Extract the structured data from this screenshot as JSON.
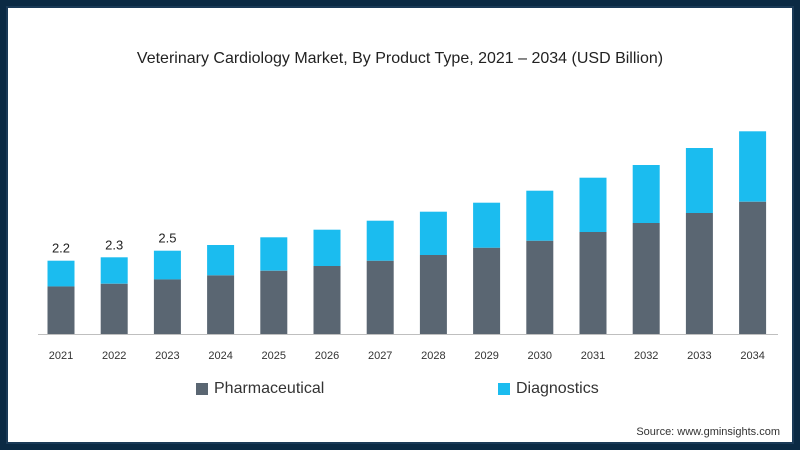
{
  "chart_data": {
    "type": "bar",
    "stacked": true,
    "title": "Veterinary Cardiology Market, By Product Type, 2021 – 2034 (USD Billion)",
    "categories": [
      "2021",
      "2022",
      "2023",
      "2024",
      "2025",
      "2026",
      "2027",
      "2028",
      "2029",
      "2030",
      "2031",
      "2032",
      "2033",
      "2034"
    ],
    "series": [
      {
        "name": "Pharmaceutical",
        "color": "#5a6672",
        "values": [
          1.43,
          1.51,
          1.64,
          1.76,
          1.9,
          2.04,
          2.2,
          2.37,
          2.59,
          2.8,
          3.06,
          3.33,
          3.63,
          3.97
        ]
      },
      {
        "name": "Diagnostics",
        "color": "#1bbcef",
        "values": [
          0.77,
          0.79,
          0.86,
          0.91,
          1.0,
          1.09,
          1.2,
          1.3,
          1.35,
          1.5,
          1.63,
          1.74,
          1.95,
          2.11
        ]
      }
    ],
    "data_labels": [
      "2.2",
      "2.3",
      "2.5"
    ],
    "ylim": [
      0,
      6.6
    ],
    "xlabel": "",
    "ylabel": "",
    "legend_position": "bottom",
    "source": "Source: www.gminsights.com"
  }
}
